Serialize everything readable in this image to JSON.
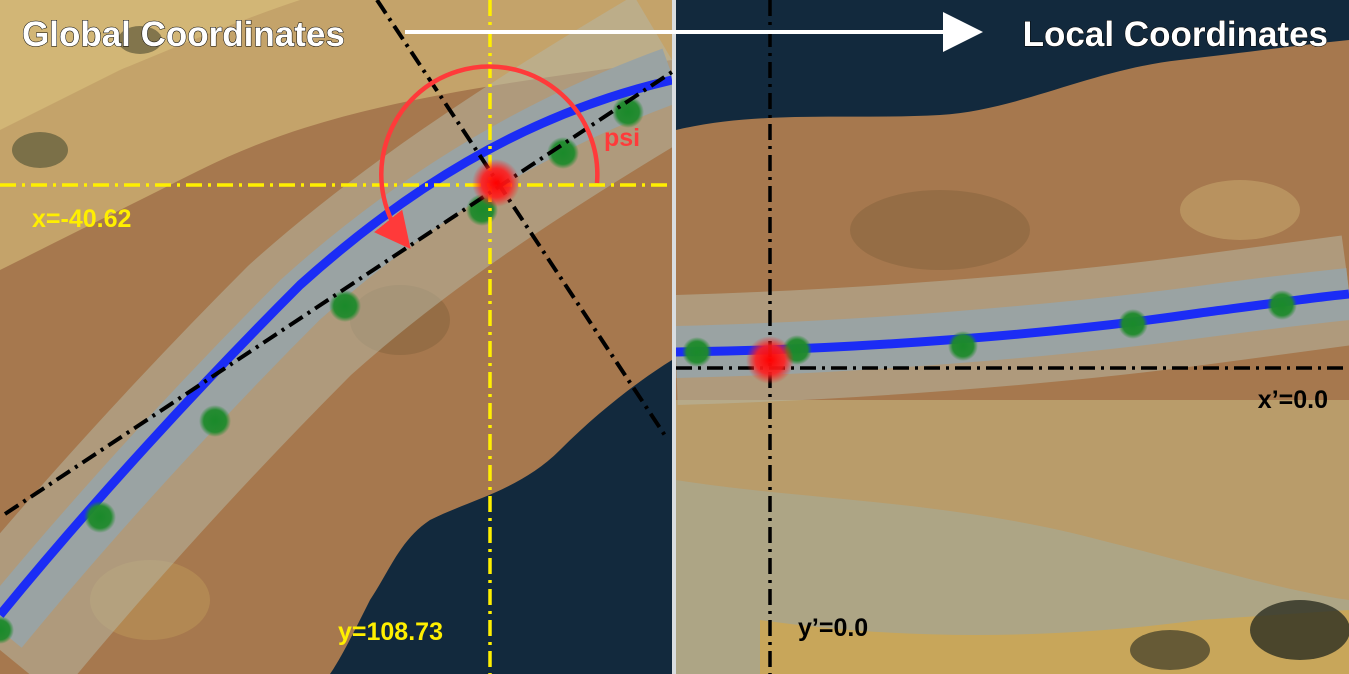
{
  "header": {
    "left_title": "Global Coordinates",
    "right_title": "Local Coordinates"
  },
  "global_panel": {
    "x_label": "x=-40.62",
    "y_label": "y=108.73",
    "angle_label": "psi"
  },
  "local_panel": {
    "x_label": "x’=0.0",
    "y_label": "y’=0.0"
  },
  "colors": {
    "water": "#12293d",
    "terrain_sand": "#c19a5c",
    "terrain_dirt": "#a6784e",
    "road": "#9aa3a3",
    "lane": "#1b2cf5",
    "waypoint": "#1f8a2c",
    "vehicle": "#ff1e1e",
    "axis_yellow": "#ffef00",
    "axis_black": "#000000",
    "angle_arc": "#ff3a3a",
    "title_text": "#ffffff"
  }
}
